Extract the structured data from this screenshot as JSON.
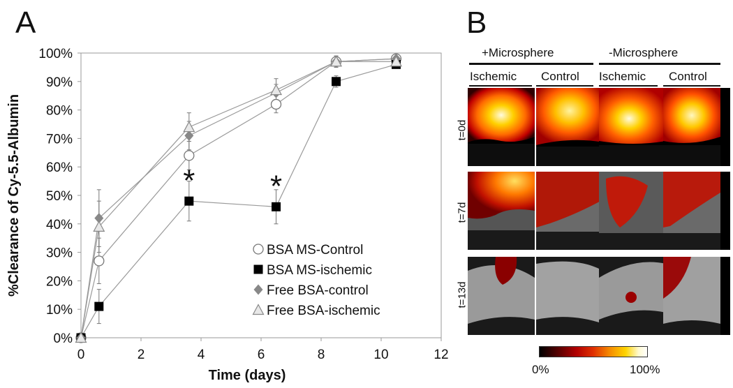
{
  "panelA": {
    "letter": "A",
    "chart_data": {
      "type": "line",
      "xlabel": "Time (days)",
      "ylabel": "%Clearance of Cy-5.5-Albumin",
      "xlim": [
        0,
        12
      ],
      "ylim": [
        0,
        100
      ],
      "xticks": [
        "0",
        "2",
        "4",
        "6",
        "8",
        "10",
        "12"
      ],
      "yticks": [
        "0%",
        "10%",
        "20%",
        "30%",
        "40%",
        "50%",
        "60%",
        "70%",
        "80%",
        "90%",
        "100%"
      ],
      "grid": false,
      "legend_position": "bottom-right",
      "series": [
        {
          "name": "BSA MS-Control",
          "marker": "open-circle",
          "color": "#888888",
          "x": [
            0,
            0.6,
            3.6,
            6.5,
            8.5,
            10.5
          ],
          "y": [
            0,
            27,
            64,
            82,
            97,
            98
          ],
          "err": [
            0,
            8,
            5,
            3,
            2,
            1
          ]
        },
        {
          "name": "BSA MS-ischemic",
          "marker": "filled-square",
          "color": "#000000",
          "x": [
            0,
            0.6,
            3.6,
            6.5,
            8.5,
            10.5
          ],
          "y": [
            0,
            11,
            48,
            46,
            90,
            96
          ],
          "err": [
            0,
            6,
            7,
            6,
            2,
            1
          ]
        },
        {
          "name": "Free BSA-control",
          "marker": "filled-diamond",
          "color": "#888888",
          "x": [
            0,
            0.6,
            3.6,
            6.5,
            8.5,
            10.5
          ],
          "y": [
            0,
            42,
            71,
            86,
            97,
            98
          ],
          "err": [
            0,
            10,
            5,
            3,
            2,
            1
          ]
        },
        {
          "name": "Free BSA-ischemic",
          "marker": "open-triangle",
          "color": "#888888",
          "x": [
            0,
            0.6,
            3.6,
            6.5,
            8.5,
            10.5
          ],
          "y": [
            0,
            39,
            74,
            87,
            97,
            97
          ],
          "err": [
            0,
            9,
            5,
            4,
            2,
            1
          ]
        }
      ],
      "annotations": [
        {
          "text": "*",
          "x": 3.6,
          "y": 57
        },
        {
          "text": "*",
          "x": 6.5,
          "y": 55
        }
      ]
    }
  },
  "panelB": {
    "letter": "B",
    "group_labels": [
      "+Microsphere",
      "-Microsphere"
    ],
    "column_labels": [
      "Ischemic",
      "Control",
      "Ischemic",
      "Control"
    ],
    "row_labels": [
      "t=0d",
      "t=7d",
      "t=13d"
    ],
    "colorbar": {
      "min_label": "0%",
      "max_label": "100%",
      "colormap": "hot"
    }
  }
}
